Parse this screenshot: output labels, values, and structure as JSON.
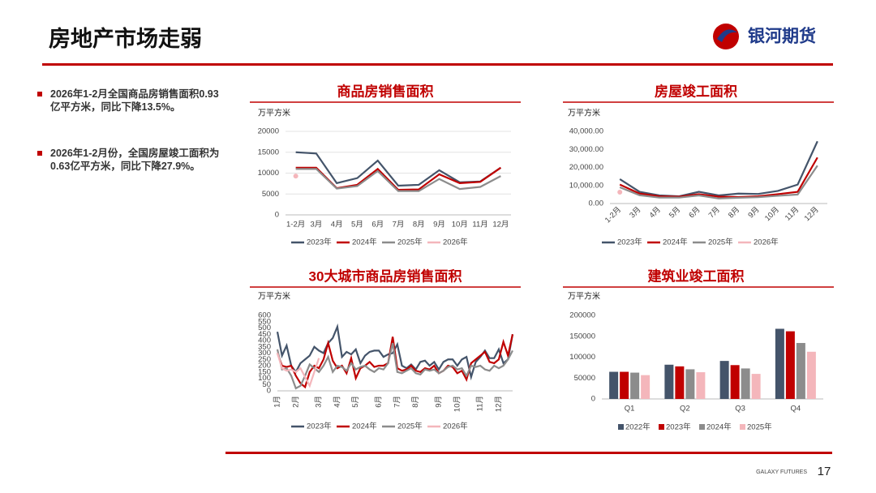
{
  "header": {
    "title": "房地产市场走弱",
    "logo": "银河期货"
  },
  "bullets": [
    "2026年1-2月全国商品房销售面积0.93亿平方米，同比下降13.5%。",
    "2026年1-2月份，全国房屋竣工面积为0.63亿平方米，同比下降27.9%。"
  ],
  "footer": {
    "brand": "GALAXY FUTURES",
    "page": "17"
  },
  "chart_data": [
    {
      "type": "line",
      "title": "商品房销售面积",
      "y_label": "万平方米",
      "categories": [
        "1-2月",
        "3月",
        "4月",
        "5月",
        "6月",
        "7月",
        "8月",
        "9月",
        "10月",
        "11月",
        "12月"
      ],
      "ylim": [
        0,
        20000
      ],
      "yticks": [
        0,
        5000,
        10000,
        15000,
        20000
      ],
      "grid": true,
      "series": [
        {
          "name": "2023年",
          "color": "#44546a",
          "values": [
            15000,
            14700,
            7600,
            8800,
            13000,
            7000,
            7200,
            10700,
            7800,
            8000,
            11300
          ]
        },
        {
          "name": "2024年",
          "color": "#c00000",
          "values": [
            11300,
            11300,
            6400,
            7200,
            11000,
            6000,
            6100,
            9700,
            7600,
            7900,
            11300
          ]
        },
        {
          "name": "2025年",
          "color": "#8c8c8c",
          "values": [
            11000,
            11000,
            6300,
            6900,
            10500,
            5700,
            5700,
            8600,
            6200,
            6700,
            9300
          ]
        },
        {
          "name": "2026年",
          "color": "#f4b6bb",
          "values": [
            9300,
            null,
            null,
            null,
            null,
            null,
            null,
            null,
            null,
            null,
            null
          ]
        }
      ]
    },
    {
      "type": "line",
      "title": "房屋竣工面积",
      "y_label": "万平方米",
      "categories": [
        "1-2月",
        "3月",
        "4月",
        "5月",
        "6月",
        "7月",
        "8月",
        "9月",
        "10月",
        "11月",
        "12月"
      ],
      "ylim": [
        0,
        40000
      ],
      "yticks": [
        {
          "value": 0,
          "label": "0.00"
        },
        {
          "value": 10000,
          "label": "10,000.00"
        },
        {
          "value": 20000,
          "label": "20,000.00"
        },
        {
          "value": 30000,
          "label": "30,000.00"
        },
        {
          "value": 40000,
          "label": "40,000.00"
        }
      ],
      "grid": false,
      "series": [
        {
          "name": "2023年",
          "color": "#44546a",
          "values": [
            13500,
            6500,
            4500,
            4000,
            6500,
            4500,
            5500,
            5300,
            7000,
            10500,
            34500
          ]
        },
        {
          "name": "2024年",
          "color": "#c00000",
          "values": [
            10500,
            5500,
            4000,
            3800,
            5200,
            3800,
            3600,
            4000,
            5200,
            6500,
            25500
          ]
        },
        {
          "name": "2025年",
          "color": "#8c8c8c",
          "values": [
            9000,
            4600,
            3300,
            3300,
            4500,
            2800,
            3200,
            3500,
            4300,
            5000,
            21000
          ]
        },
        {
          "name": "2026年",
          "color": "#f4b6bb",
          "values": [
            6300,
            null,
            null,
            null,
            null,
            null,
            null,
            null,
            null,
            null,
            null
          ]
        }
      ]
    },
    {
      "type": "line",
      "title": "30大城市商品房销售面积",
      "y_label": "万平方米",
      "categories": [
        "1月",
        null,
        null,
        null,
        "2月",
        null,
        null,
        null,
        null,
        "3月",
        null,
        null,
        null,
        "4月",
        null,
        null,
        null,
        "5月",
        null,
        null,
        null,
        null,
        "6月",
        null,
        null,
        null,
        "7月",
        null,
        null,
        null,
        "8月",
        null,
        null,
        null,
        null,
        "9月",
        null,
        null,
        null,
        "10月",
        null,
        null,
        null,
        null,
        "11月",
        null,
        null,
        null,
        "12月",
        null,
        null,
        null
      ],
      "ylim": [
        0,
        600
      ],
      "yticks": [
        0,
        50,
        100,
        150,
        200,
        250,
        300,
        350,
        400,
        450,
        500,
        550,
        600
      ],
      "grid": false,
      "series": [
        {
          "name": "2023年",
          "color": "#44546a",
          "values": [
            470,
            280,
            360,
            200,
            150,
            220,
            250,
            280,
            350,
            320,
            300,
            380,
            420,
            510,
            270,
            310,
            290,
            330,
            220,
            280,
            310,
            320,
            320,
            270,
            290,
            300,
            370,
            200,
            180,
            210,
            170,
            230,
            240,
            200,
            230,
            170,
            230,
            250,
            250,
            200,
            250,
            270,
            110,
            230,
            270,
            320,
            260,
            260,
            330,
            220,
            250,
            450
          ]
        },
        {
          "name": "2024年",
          "color": "#c00000",
          "values": [
            300,
            200,
            190,
            200,
            120,
            60,
            30,
            150,
            200,
            180,
            250,
            380,
            240,
            180,
            200,
            140,
            260,
            100,
            180,
            200,
            230,
            190,
            200,
            200,
            220,
            430,
            180,
            160,
            170,
            200,
            160,
            150,
            180,
            170,
            200,
            140,
            160,
            200,
            190,
            140,
            160,
            90,
            220,
            250,
            280,
            310,
            230,
            220,
            250,
            390,
            280,
            450
          ]
        },
        {
          "name": "2025年",
          "color": "#8c8c8c",
          "values": [
            330,
            170,
            180,
            120,
            20,
            40,
            120,
            210,
            180,
            150,
            200,
            270,
            150,
            200,
            190,
            160,
            220,
            170,
            190,
            200,
            170,
            150,
            180,
            170,
            220,
            380,
            150,
            140,
            160,
            180,
            140,
            130,
            170,
            160,
            170,
            140,
            160,
            190,
            200,
            170,
            180,
            120,
            200,
            190,
            200,
            170,
            160,
            200,
            180,
            200,
            250,
            320
          ]
        },
        {
          "name": "2026年",
          "color": "#f4b6bb",
          "values": [
            300,
            180,
            160,
            170,
            150,
            180,
            110,
            40,
            150,
            260,
            null,
            null,
            null,
            null,
            null,
            null,
            null,
            null,
            null,
            null,
            null,
            null,
            null,
            null,
            null,
            null,
            null,
            null,
            null,
            null,
            null,
            null,
            null,
            null,
            null,
            null,
            null,
            null,
            null,
            null,
            null,
            null,
            null,
            null,
            null,
            null,
            null,
            null,
            null,
            null,
            null,
            null
          ]
        }
      ]
    },
    {
      "type": "bar",
      "title": "建筑业竣工面积",
      "y_label": "万平方米",
      "categories": [
        "Q1",
        "Q2",
        "Q3",
        "Q4"
      ],
      "ylim": [
        0,
        200000
      ],
      "yticks": [
        0,
        50000,
        100000,
        150000,
        200000
      ],
      "grid": false,
      "series": [
        {
          "name": "2022年",
          "color": "#44546a",
          "values": [
            65000,
            82000,
            91000,
            168000
          ]
        },
        {
          "name": "2023年",
          "color": "#c00000",
          "values": [
            65000,
            78000,
            81000,
            162000
          ]
        },
        {
          "name": "2024年",
          "color": "#8c8c8c",
          "values": [
            63000,
            71000,
            73000,
            134000
          ]
        },
        {
          "name": "2025年",
          "color": "#f4b6bb",
          "values": [
            57000,
            64000,
            60000,
            113000
          ]
        }
      ]
    }
  ]
}
